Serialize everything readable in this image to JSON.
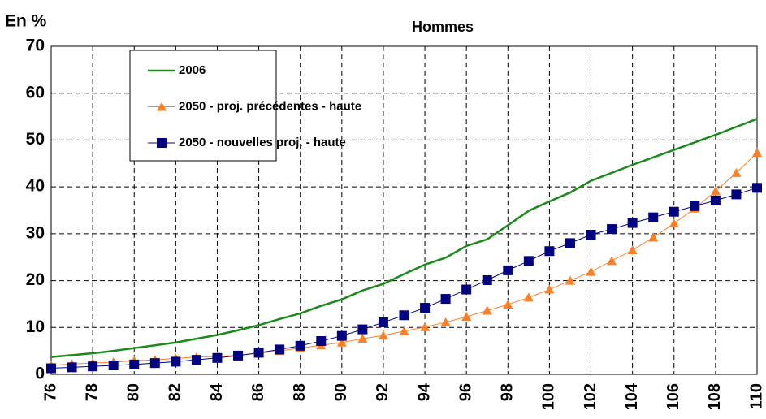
{
  "chart_data": {
    "type": "line",
    "title": "Hommes",
    "y_label": "En %",
    "x": [
      76,
      77,
      78,
      79,
      80,
      81,
      82,
      83,
      84,
      85,
      86,
      87,
      88,
      89,
      90,
      91,
      92,
      93,
      94,
      95,
      96,
      97,
      98,
      99,
      100,
      101,
      102,
      103,
      104,
      105,
      106,
      107,
      108,
      109,
      110
    ],
    "xlim": [
      76,
      110
    ],
    "xticks": [
      76,
      78,
      80,
      82,
      84,
      86,
      88,
      90,
      92,
      94,
      96,
      98,
      100,
      102,
      104,
      106,
      108,
      110
    ],
    "ylim": [
      0,
      70
    ],
    "yticks": [
      0,
      10,
      20,
      30,
      40,
      50,
      60,
      70
    ],
    "grid": true,
    "legend_position": "upper-left",
    "series": [
      {
        "name": "2006",
        "color": "#1a8a1a",
        "marker": "none",
        "values": [
          3.7,
          4.1,
          4.5,
          5.0,
          5.6,
          6.2,
          6.8,
          7.6,
          8.4,
          9.4,
          10.5,
          11.8,
          13.0,
          14.6,
          16.0,
          17.9,
          19.3,
          21.4,
          23.4,
          24.9,
          27.4,
          28.8,
          31.8,
          34.9,
          36.9,
          38.8,
          41.3,
          43.0,
          44.7,
          46.3,
          47.9,
          49.5,
          51.1,
          52.8,
          54.5
        ]
      },
      {
        "name": "2050 - proj. précédentes - haute",
        "color": "#ff7f27",
        "marker": "triangle",
        "values": [
          1.9,
          2.2,
          2.4,
          2.6,
          2.9,
          3.1,
          3.4,
          3.7,
          3.8,
          4.1,
          4.5,
          5.0,
          5.6,
          6.2,
          6.8,
          7.6,
          8.3,
          9.2,
          10.1,
          11.1,
          12.3,
          13.6,
          14.9,
          16.4,
          18.1,
          20.0,
          21.9,
          24.2,
          26.5,
          29.2,
          32.2,
          35.4,
          39.1,
          43.0,
          47.3
        ]
      },
      {
        "name": "2050 - nouvelles proj. - haute",
        "color": "#000080",
        "marker": "square",
        "values": [
          1.3,
          1.5,
          1.7,
          1.9,
          2.1,
          2.4,
          2.7,
          3.1,
          3.5,
          4.0,
          4.6,
          5.3,
          6.1,
          7.1,
          8.2,
          9.6,
          11.1,
          12.6,
          14.2,
          16.1,
          18.1,
          20.1,
          22.2,
          24.2,
          26.3,
          28.0,
          29.8,
          31.0,
          32.3,
          33.5,
          34.7,
          35.9,
          37.1,
          38.4,
          39.8
        ]
      }
    ]
  }
}
